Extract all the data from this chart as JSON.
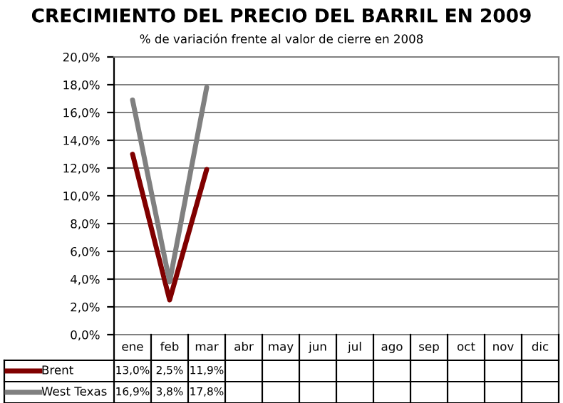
{
  "chart_data": {
    "type": "line",
    "title": "CRECIMIENTO DEL PRECIO DEL BARRIL EN 2009",
    "subtitle": "% de variación frente al valor de cierre en 2008",
    "categories": [
      "ene",
      "feb",
      "mar",
      "abr",
      "may",
      "jun",
      "jul",
      "ago",
      "sep",
      "oct",
      "nov",
      "dic"
    ],
    "series": [
      {
        "name": "Brent",
        "color": "#800000",
        "values": [
          13.0,
          2.5,
          11.9,
          null,
          null,
          null,
          null,
          null,
          null,
          null,
          null,
          null
        ],
        "value_labels": [
          "13,0%",
          "2,5%",
          "11,9%",
          null,
          null,
          null,
          null,
          null,
          null,
          null,
          null,
          null
        ]
      },
      {
        "name": "West Texas",
        "color": "#808080",
        "values": [
          16.9,
          3.8,
          17.8,
          null,
          null,
          null,
          null,
          null,
          null,
          null,
          null,
          null
        ],
        "value_labels": [
          "16,9%",
          "3,8%",
          "17,8%",
          null,
          null,
          null,
          null,
          null,
          null,
          null,
          null,
          null
        ]
      }
    ],
    "ylim": [
      0,
      20
    ],
    "yticks": [
      {
        "value": 0,
        "label": "0,0%"
      },
      {
        "value": 2,
        "label": "2,0%"
      },
      {
        "value": 4,
        "label": "4,0%"
      },
      {
        "value": 6,
        "label": "6,0%"
      },
      {
        "value": 8,
        "label": "8,0%"
      },
      {
        "value": 10,
        "label": "10,0%"
      },
      {
        "value": 12,
        "label": "12,0%"
      },
      {
        "value": 14,
        "label": "14,0%"
      },
      {
        "value": 16,
        "label": "16,0%"
      },
      {
        "value": 18,
        "label": "18,0%"
      },
      {
        "value": 20,
        "label": "20,0%"
      }
    ],
    "grid": "y",
    "legend": "bottom",
    "marker": "none",
    "line_style": "solid"
  }
}
